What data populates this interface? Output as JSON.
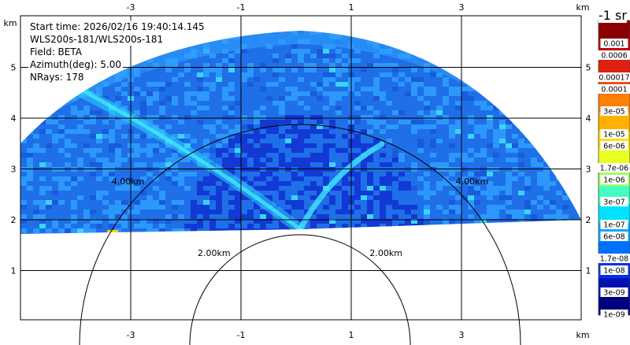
{
  "info": {
    "start_time": "Start time: 2026/02/16 19:40:14.145",
    "instrument": "WLS200s-181/WLS200s-181",
    "field": "Field: BETA",
    "azimuth": "Azimuth(deg): 5.00",
    "nrays": "NRays: 178"
  },
  "axes": {
    "x_unit": "km",
    "y_unit": "km",
    "x_ticks": [
      "-3",
      "-1",
      "1",
      "3"
    ],
    "x_tick_values": [
      -3,
      -1,
      1,
      3
    ],
    "y_ticks": [
      "1",
      "2",
      "3",
      "4",
      "5"
    ],
    "y_tick_values": [
      1,
      2,
      3,
      4,
      5
    ]
  },
  "range_rings": [
    {
      "label": "2.00km",
      "radius_km": 2
    },
    {
      "label": "4.00km",
      "radius_km": 4
    }
  ],
  "colorbar": {
    "title": "-1 sr",
    "labels": [
      "0.001",
      "0.0006",
      "0.00017",
      "0.0001",
      "3e-05",
      "1e-05",
      "6e-06",
      "1.7e-06",
      "1e-06",
      "3e-07",
      "1e-07",
      "6e-08",
      "1.7e-08",
      "1e-08",
      "3e-09",
      "1e-09"
    ],
    "colors": [
      "#8b0000",
      "#c00000",
      "#e02010",
      "#f05010",
      "#ff8000",
      "#ffb000",
      "#ffe000",
      "#e8ff20",
      "#a0ff60",
      "#40ffc0",
      "#00e0ff",
      "#00a8ff",
      "#0070ff",
      "#0030f0",
      "#0010b0",
      "#000080"
    ]
  },
  "colors": {
    "background_blue": "#1f6fe8",
    "sky_blue": "#2fa0ff",
    "dark_blue": "#1030d0",
    "cyan": "#40e8ff"
  }
}
